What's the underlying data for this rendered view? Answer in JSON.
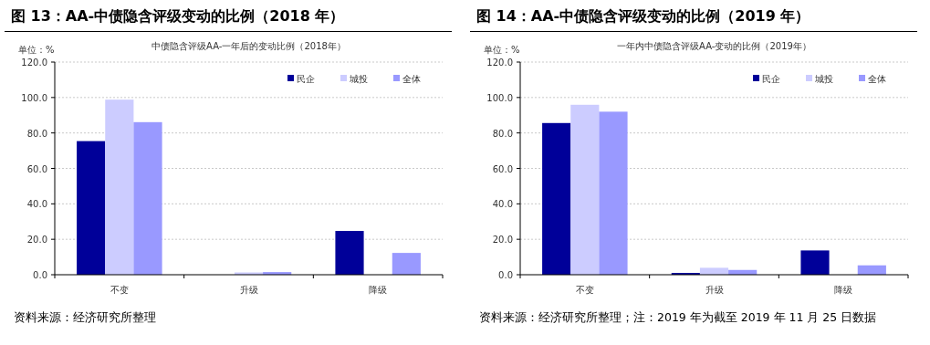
{
  "chart_data": [
    {
      "type": "bar",
      "title": "图 13：AA-中债隐含评级变动的比例（2018 年）",
      "subtitle": "中债隐含评级AA-一年后的变动比例（2018年）",
      "ylabel": "单位：%",
      "categories": [
        "不变",
        "升级",
        "降级"
      ],
      "series": [
        {
          "name": "民企",
          "color": "#000099",
          "values": [
            75.4,
            0,
            24.7
          ]
        },
        {
          "name": "城投",
          "color": "#ccccff",
          "values": [
            98.8,
            1.3,
            0
          ]
        },
        {
          "name": "全体",
          "color": "#9999ff",
          "values": [
            86.1,
            1.5,
            12.3
          ]
        }
      ],
      "ylim": [
        0,
        120
      ],
      "yticks": [
        {
          "value": 0,
          "label": "0.0"
        },
        {
          "value": 20,
          "label": "20.0"
        },
        {
          "value": 40,
          "label": "40.0"
        },
        {
          "value": 60,
          "label": "60.0"
        },
        {
          "value": 80,
          "label": "80.0"
        },
        {
          "value": 100,
          "label": "100.0"
        },
        {
          "value": 120,
          "label": "120.0"
        }
      ],
      "grid": "y",
      "legend": "top right",
      "annotations": [
        "资料来源：经济研究所整理"
      ]
    },
    {
      "type": "bar",
      "title": "图 14：AA-中债隐含评级变动的比例（2019 年）",
      "subtitle": "一年内中债隐含评级AA-变动的比例（2019年）",
      "ylabel": "单位：%",
      "categories": [
        "不变",
        "升级",
        "降级"
      ],
      "series": [
        {
          "name": "民企",
          "color": "#000099",
          "values": [
            85.6,
            1.0,
            13.7
          ]
        },
        {
          "name": "城投",
          "color": "#ccccff",
          "values": [
            95.9,
            3.9,
            0
          ]
        },
        {
          "name": "全体",
          "color": "#9999ff",
          "values": [
            92.0,
            2.7,
            5.3
          ]
        }
      ],
      "ylim": [
        0,
        120
      ],
      "yticks": [
        {
          "value": 0,
          "label": "0.0"
        },
        {
          "value": 20,
          "label": "20.0"
        },
        {
          "value": 40,
          "label": "40.0"
        },
        {
          "value": 60,
          "label": "60.0"
        },
        {
          "value": 80,
          "label": "80.0"
        },
        {
          "value": 100,
          "label": "100.0"
        },
        {
          "value": 120,
          "label": "120.0"
        }
      ],
      "grid": "y",
      "legend": "top right",
      "annotations": [
        "资料来源：经济研究所整理；注：2019 年为截至 2019 年 11 月 25 日数据"
      ]
    }
  ]
}
